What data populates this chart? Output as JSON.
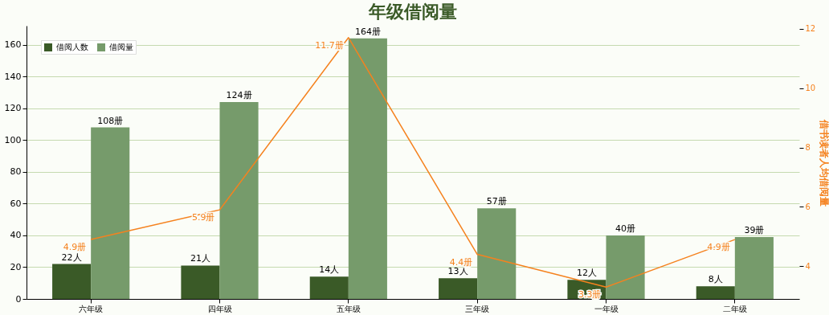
{
  "chart_data": {
    "type": "bar",
    "title": "年级借阅量",
    "y2label": "借书读者人均借阅量",
    "categories": [
      "六年级",
      "四年级",
      "五年级",
      "三年级",
      "一年级",
      "二年级"
    ],
    "series": [
      {
        "name": "借阅人数",
        "color": "#3a5a27",
        "values": [
          22,
          21,
          14,
          13,
          12,
          8
        ],
        "value_labels": [
          "22人",
          "21人",
          "14人",
          "13人",
          "12人",
          "8人"
        ]
      },
      {
        "name": "借阅量",
        "color": "#769b6b",
        "values": [
          108,
          124,
          164,
          57,
          40,
          39
        ],
        "value_labels": [
          "108册",
          "124册",
          "164册",
          "57册",
          "40册",
          "39册"
        ]
      },
      {
        "type": "line",
        "axis": "y2",
        "color": "#f5821f",
        "values": [
          4.9,
          5.9,
          11.7,
          4.4,
          3.3,
          4.9
        ],
        "value_labels": [
          "4.9册",
          "5.9册",
          "11.7册",
          "4.4册",
          "3.3册",
          "4.9册"
        ]
      }
    ],
    "ylim": [
      0,
      172
    ],
    "yticks": [
      0,
      20,
      40,
      60,
      80,
      100,
      120,
      140,
      160
    ],
    "y2lim": [
      2.9,
      12.1
    ],
    "y2ticks": [
      4,
      6,
      8,
      10,
      12
    ],
    "grid": true,
    "legend": "top left"
  }
}
